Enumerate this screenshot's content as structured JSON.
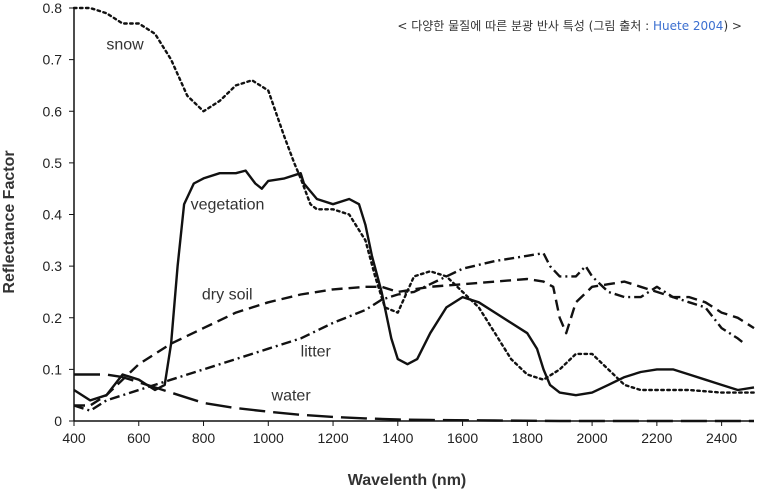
{
  "chart_data": {
    "type": "line",
    "title": "",
    "source_note": {
      "prefix": "< 다양한 물질에 따른 분광 반사 특성 (그림 출처 : ",
      "link": "Huete 2004",
      "suffix": ") >"
    },
    "xlabel": "Wavelenth (nm)",
    "ylabel": "Reflectance Factor",
    "xlim": [
      400,
      2500
    ],
    "ylim": [
      0,
      0.8
    ],
    "xticks": [
      "400",
      "600",
      "800",
      "1000",
      "1200",
      "1400",
      "1600",
      "1800",
      "2000",
      "2200",
      "2400"
    ],
    "yticks": [
      "0",
      "0.1",
      "0.2",
      "0.3",
      "0.4",
      "0.5",
      "0.6",
      "0.7",
      "0.8"
    ],
    "grid": false,
    "legend": "inline labels",
    "series": [
      {
        "name": "snow",
        "style": "dotted",
        "x": [
          400,
          450,
          500,
          550,
          600,
          650,
          700,
          750,
          800,
          850,
          900,
          950,
          1000,
          1050,
          1080,
          1100,
          1130,
          1150,
          1200,
          1250,
          1300,
          1330,
          1360,
          1400,
          1450,
          1500,
          1550,
          1600,
          1650,
          1700,
          1750,
          1800,
          1850,
          1900,
          1950,
          2000,
          2050,
          2100,
          2150,
          2200,
          2300,
          2400,
          2500
        ],
        "y": [
          0.8,
          0.8,
          0.79,
          0.77,
          0.77,
          0.75,
          0.7,
          0.63,
          0.6,
          0.62,
          0.65,
          0.66,
          0.64,
          0.55,
          0.5,
          0.47,
          0.42,
          0.41,
          0.41,
          0.4,
          0.35,
          0.28,
          0.22,
          0.21,
          0.28,
          0.29,
          0.28,
          0.25,
          0.22,
          0.17,
          0.12,
          0.09,
          0.08,
          0.1,
          0.13,
          0.13,
          0.1,
          0.07,
          0.06,
          0.06,
          0.06,
          0.055,
          0.055
        ]
      },
      {
        "name": "vegetation",
        "style": "solid",
        "x": [
          400,
          450,
          500,
          550,
          600,
          650,
          680,
          700,
          720,
          740,
          770,
          800,
          850,
          900,
          930,
          960,
          980,
          1000,
          1050,
          1100,
          1110,
          1150,
          1200,
          1250,
          1280,
          1300,
          1320,
          1350,
          1380,
          1400,
          1430,
          1460,
          1500,
          1550,
          1600,
          1650,
          1700,
          1750,
          1800,
          1830,
          1850,
          1870,
          1900,
          1950,
          2000,
          2050,
          2100,
          2150,
          2200,
          2250,
          2300,
          2350,
          2400,
          2450,
          2500
        ],
        "y": [
          0.06,
          0.04,
          0.05,
          0.09,
          0.08,
          0.06,
          0.07,
          0.15,
          0.3,
          0.42,
          0.46,
          0.47,
          0.48,
          0.48,
          0.485,
          0.46,
          0.45,
          0.465,
          0.47,
          0.48,
          0.46,
          0.43,
          0.42,
          0.43,
          0.42,
          0.38,
          0.32,
          0.25,
          0.16,
          0.12,
          0.11,
          0.12,
          0.17,
          0.22,
          0.24,
          0.23,
          0.21,
          0.19,
          0.17,
          0.14,
          0.1,
          0.07,
          0.055,
          0.05,
          0.055,
          0.07,
          0.085,
          0.095,
          0.1,
          0.1,
          0.09,
          0.08,
          0.07,
          0.06,
          0.065
        ]
      },
      {
        "name": "dry soil",
        "style": "dashed",
        "x": [
          400,
          450,
          500,
          600,
          700,
          800,
          900,
          1000,
          1100,
          1200,
          1300,
          1350,
          1400,
          1500,
          1600,
          1700,
          1800,
          1850,
          1880,
          1900,
          1920,
          1950,
          2000,
          2050,
          2100,
          2150,
          2200,
          2250,
          2300,
          2350,
          2400,
          2450,
          2500
        ],
        "y": [
          0.03,
          0.03,
          0.05,
          0.11,
          0.15,
          0.18,
          0.21,
          0.23,
          0.245,
          0.255,
          0.26,
          0.26,
          0.25,
          0.26,
          0.265,
          0.27,
          0.275,
          0.27,
          0.26,
          0.2,
          0.17,
          0.23,
          0.26,
          0.265,
          0.27,
          0.26,
          0.25,
          0.24,
          0.24,
          0.23,
          0.21,
          0.2,
          0.18
        ]
      },
      {
        "name": "litter",
        "style": "dash-dot",
        "x": [
          400,
          450,
          500,
          600,
          700,
          800,
          900,
          1000,
          1100,
          1200,
          1300,
          1350,
          1400,
          1450,
          1500,
          1600,
          1700,
          1800,
          1850,
          1870,
          1900,
          1950,
          1980,
          2000,
          2050,
          2100,
          2150,
          2200,
          2250,
          2300,
          2350,
          2400,
          2450,
          2470
        ],
        "y": [
          0.03,
          0.02,
          0.04,
          0.06,
          0.08,
          0.1,
          0.12,
          0.14,
          0.16,
          0.19,
          0.215,
          0.235,
          0.245,
          0.25,
          0.265,
          0.295,
          0.31,
          0.32,
          0.325,
          0.3,
          0.28,
          0.28,
          0.3,
          0.28,
          0.25,
          0.24,
          0.24,
          0.26,
          0.24,
          0.23,
          0.22,
          0.18,
          0.16,
          0.15
        ]
      },
      {
        "name": "water",
        "style": "long-dash",
        "x": [
          400,
          450,
          500,
          550,
          600,
          650,
          700,
          750,
          800,
          900,
          1000,
          1100,
          1200,
          1300,
          1400,
          1500,
          1700,
          1900,
          2100,
          2300,
          2500
        ],
        "y": [
          0.09,
          0.09,
          0.09,
          0.085,
          0.075,
          0.065,
          0.055,
          0.045,
          0.035,
          0.025,
          0.018,
          0.012,
          0.008,
          0.005,
          0.003,
          0.002,
          0.001,
          0.0,
          0.0,
          0.0,
          0.0
        ]
      }
    ],
    "series_label_positions": [
      {
        "name": "snow",
        "x": 500,
        "y": 0.72
      },
      {
        "name": "vegetation",
        "x": 760,
        "y": 0.41
      },
      {
        "name": "dry soil",
        "x": 795,
        "y": 0.235
      },
      {
        "name": "litter",
        "x": 1100,
        "y": 0.125
      },
      {
        "name": "water",
        "x": 1010,
        "y": 0.04
      }
    ]
  }
}
